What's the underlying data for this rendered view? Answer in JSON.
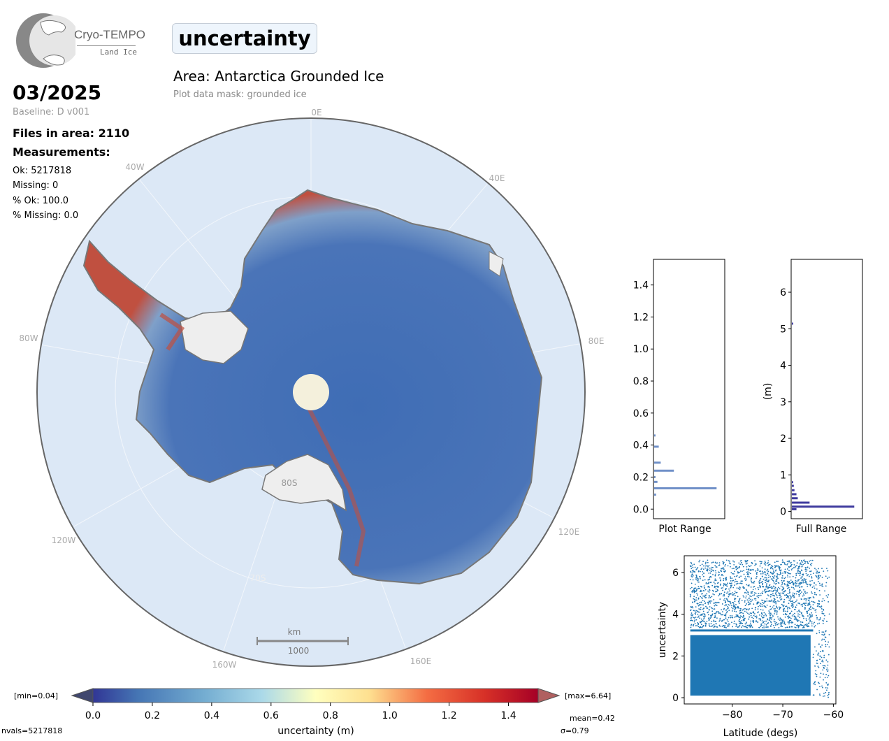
{
  "logo": {
    "line1": "Cryo-TEMPO",
    "line2": "Land Ice"
  },
  "title": "uncertainty",
  "area": "Area: Antarctica Grounded Ice",
  "mask": "Plot data mask: grounded ice",
  "date": "03/2025",
  "baseline": "Baseline: D v001",
  "files": "Files in area: 2110",
  "measurements_label": "Measurements:",
  "stats": [
    "Ok: 5217818",
    "Missing: 0",
    "% Ok: 100.0",
    "% Missing: 0.0"
  ],
  "map": {
    "meridian_labels": [
      "0E",
      "40E",
      "80E",
      "120E",
      "160E",
      "160W",
      "120W",
      "80W",
      "40W"
    ],
    "parallel_labels": [
      "80S",
      "70S"
    ],
    "scale_unit": "km",
    "scale_value": "1000"
  },
  "colorbar": {
    "label": "uncertainty (m)",
    "ticks": [
      "0.0",
      "0.2",
      "0.4",
      "0.6",
      "0.8",
      "1.0",
      "1.2",
      "1.4"
    ],
    "min_label": "[min=0.04]",
    "max_label": "[max=6.64]",
    "nvals": "nvals=5217818",
    "mean": "mean=0.42",
    "sigma": "σ=0.79"
  },
  "chart_data": [
    {
      "type": "bar",
      "orientation": "horizontal",
      "title": "",
      "xlabel": "Plot Range",
      "ylabel": "",
      "ylim": [
        -0.06,
        1.56
      ],
      "yticks": [
        "0.0",
        "0.2",
        "0.4",
        "0.6",
        "0.8",
        "1.0",
        "1.2",
        "1.4"
      ],
      "bins": [
        0.09,
        0.13,
        0.17,
        0.2,
        0.24,
        0.29,
        0.39,
        0.46
      ],
      "values": [
        0.03,
        0.95,
        0.05,
        0.02,
        0.3,
        0.1,
        0.07,
        0.02
      ]
    },
    {
      "type": "bar",
      "orientation": "horizontal",
      "title": "",
      "xlabel": "Full Range",
      "ylabel": "(m)",
      "ylim": [
        -0.2,
        6.9
      ],
      "yticks": [
        "0",
        "1",
        "2",
        "3",
        "4",
        "5",
        "6"
      ],
      "bins": [
        0.06,
        0.13,
        0.24,
        0.36,
        0.47,
        0.58,
        0.7,
        0.8,
        5.14
      ],
      "values": [
        0.07,
        0.95,
        0.27,
        0.09,
        0.07,
        0.04,
        0.03,
        0.02,
        0.02
      ]
    },
    {
      "type": "scatter",
      "title": "",
      "xlabel": "Latitude (degs)",
      "ylabel": "uncertainty",
      "xlim": [
        -89.5,
        -59.5
      ],
      "ylim": [
        -0.3,
        6.8
      ],
      "xticks": [
        "−80",
        "−70",
        "−60"
      ],
      "yticks": [
        "0",
        "2",
        "4",
        "6"
      ],
      "color": "#1f77b4"
    }
  ],
  "colors": {
    "ocean": "#dce8f6",
    "ice_shelf": "#eeeeee",
    "pole_hole": "#f4f0dc",
    "scatter": "#1f77b4",
    "hist_plot": "#7090c8",
    "hist_full": "#3e3a9e"
  }
}
